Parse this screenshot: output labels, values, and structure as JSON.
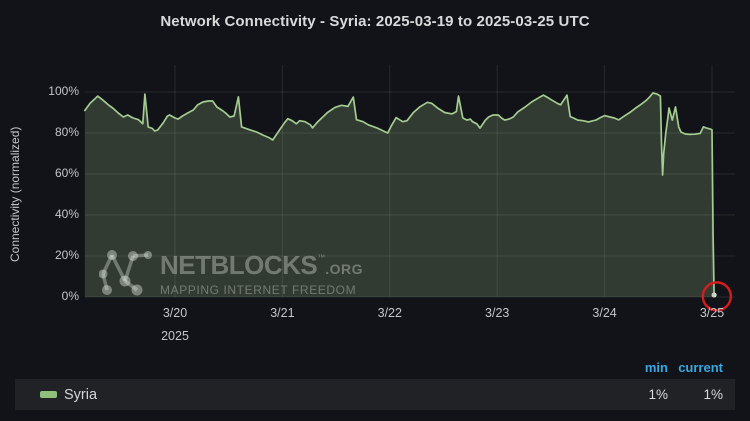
{
  "title": "Network Connectivity - Syria: 2025-03-19 to 2025-03-25 UTC",
  "colors": {
    "background": "#121318",
    "title_text": "#d8d9da",
    "tick_text": "#c2c5c9",
    "grid": "rgba(255,255,255,0.09)",
    "line": "#a4cb90",
    "fill": "rgba(163,203,144,0.22)",
    "legend_header": "#38a7e0",
    "legend_row_bg": "#212226",
    "annotation_red": "#d41d1d",
    "endpoint_dot": "#ccd4c9",
    "watermark": "rgba(234,242,233,0.34)"
  },
  "chart_data": {
    "type": "line",
    "title": "Network Connectivity - Syria: 2025-03-19 to 2025-03-25 UTC",
    "xlabel": "",
    "ylabel": "Connectivity (normalized)",
    "ylim": [
      0,
      100
    ],
    "x_unit": "days since 2025-03-19 00:00 UTC",
    "xlim": [
      0.16,
      6.21
    ],
    "grid": true,
    "legend_position": "bottom",
    "y_axis": {
      "label": "Connectivity (normalized)",
      "ticks": [
        {
          "v": 100,
          "label": "100%"
        },
        {
          "v": 80,
          "label": "80%"
        },
        {
          "v": 60,
          "label": "60%"
        },
        {
          "v": 40,
          "label": "40%"
        },
        {
          "v": 20,
          "label": "20%"
        },
        {
          "v": 0,
          "label": "0%"
        }
      ]
    },
    "x_axis": {
      "ticks": [
        {
          "t": 1,
          "label": "3/20"
        },
        {
          "t": 2,
          "label": "3/21"
        },
        {
          "t": 3,
          "label": "3/22"
        },
        {
          "t": 4,
          "label": "3/23"
        },
        {
          "t": 5,
          "label": "3/24"
        },
        {
          "t": 6,
          "label": "3/25"
        }
      ],
      "year_label": "2025",
      "year_under_t": 1
    },
    "series": [
      {
        "name": "Syria",
        "color": "#a4cb90",
        "points": [
          [
            0.16,
            91
          ],
          [
            0.21,
            94.6
          ],
          [
            0.26,
            97
          ],
          [
            0.28,
            98
          ],
          [
            0.33,
            96
          ],
          [
            0.38,
            93.7
          ],
          [
            0.42,
            92.2
          ],
          [
            0.47,
            89.8
          ],
          [
            0.52,
            87.8
          ],
          [
            0.56,
            88.8
          ],
          [
            0.61,
            87.3
          ],
          [
            0.66,
            86.5
          ],
          [
            0.7,
            84.5
          ],
          [
            0.72,
            99
          ],
          [
            0.75,
            83
          ],
          [
            0.79,
            82.2
          ],
          [
            0.81,
            81
          ],
          [
            0.84,
            81.5
          ],
          [
            0.89,
            85
          ],
          [
            0.93,
            88.3
          ],
          [
            0.95,
            88.8
          ],
          [
            1.0,
            87.3
          ],
          [
            1.03,
            86.8
          ],
          [
            1.07,
            88.3
          ],
          [
            1.12,
            89.8
          ],
          [
            1.17,
            91.2
          ],
          [
            1.21,
            93.7
          ],
          [
            1.26,
            95.1
          ],
          [
            1.31,
            95.6
          ],
          [
            1.35,
            95.6
          ],
          [
            1.39,
            92.7
          ],
          [
            1.44,
            91
          ],
          [
            1.47,
            89.8
          ],
          [
            1.51,
            87.8
          ],
          [
            1.55,
            88.3
          ],
          [
            1.59,
            97.6
          ],
          [
            1.62,
            83
          ],
          [
            1.65,
            82.4
          ],
          [
            1.7,
            81.5
          ],
          [
            1.76,
            80.5
          ],
          [
            1.82,
            79
          ],
          [
            1.88,
            77.6
          ],
          [
            1.91,
            76.6
          ],
          [
            1.98,
            82
          ],
          [
            2.02,
            85
          ],
          [
            2.05,
            87
          ],
          [
            2.09,
            86
          ],
          [
            2.13,
            84.5
          ],
          [
            2.16,
            86
          ],
          [
            2.21,
            85.5
          ],
          [
            2.26,
            84
          ],
          [
            2.28,
            82.5
          ],
          [
            2.33,
            85.5
          ],
          [
            2.38,
            88
          ],
          [
            2.42,
            90
          ],
          [
            2.49,
            92.5
          ],
          [
            2.55,
            93.5
          ],
          [
            2.61,
            93
          ],
          [
            2.66,
            97.5
          ],
          [
            2.69,
            86.5
          ],
          [
            2.75,
            85.5
          ],
          [
            2.8,
            84
          ],
          [
            2.88,
            82.5
          ],
          [
            2.94,
            81
          ],
          [
            2.98,
            80
          ],
          [
            3.02,
            84
          ],
          [
            3.06,
            87.5
          ],
          [
            3.09,
            86.5
          ],
          [
            3.12,
            85.5
          ],
          [
            3.16,
            86
          ],
          [
            3.22,
            90
          ],
          [
            3.28,
            92.8
          ],
          [
            3.35,
            95
          ],
          [
            3.39,
            94.5
          ],
          [
            3.45,
            92
          ],
          [
            3.51,
            90
          ],
          [
            3.58,
            89.3
          ],
          [
            3.62,
            90.5
          ],
          [
            3.64,
            98
          ],
          [
            3.68,
            87.3
          ],
          [
            3.72,
            86.3
          ],
          [
            3.75,
            86.8
          ],
          [
            3.77,
            85.5
          ],
          [
            3.81,
            84.5
          ],
          [
            3.84,
            82.4
          ],
          [
            3.89,
            86.3
          ],
          [
            3.92,
            87.8
          ],
          [
            3.96,
            88.8
          ],
          [
            4.01,
            88.8
          ],
          [
            4.04,
            87.3
          ],
          [
            4.07,
            86.3
          ],
          [
            4.11,
            86.8
          ],
          [
            4.15,
            87.8
          ],
          [
            4.19,
            90.2
          ],
          [
            4.26,
            92.7
          ],
          [
            4.32,
            95.1
          ],
          [
            4.38,
            97
          ],
          [
            4.43,
            98.5
          ],
          [
            4.46,
            97.6
          ],
          [
            4.51,
            96
          ],
          [
            4.56,
            94.5
          ],
          [
            4.59,
            93.7
          ],
          [
            4.65,
            98.5
          ],
          [
            4.68,
            88
          ],
          [
            4.71,
            87.3
          ],
          [
            4.75,
            86.3
          ],
          [
            4.8,
            86
          ],
          [
            4.85,
            85.4
          ],
          [
            4.88,
            85.8
          ],
          [
            4.92,
            86.3
          ],
          [
            4.96,
            87.5
          ],
          [
            5.0,
            88.5
          ],
          [
            5.05,
            87.8
          ],
          [
            5.09,
            87.3
          ],
          [
            5.13,
            86.4
          ],
          [
            5.19,
            88.5
          ],
          [
            5.24,
            90.2
          ],
          [
            5.29,
            92.2
          ],
          [
            5.34,
            94
          ],
          [
            5.39,
            96
          ],
          [
            5.42,
            97.6
          ],
          [
            5.45,
            99.5
          ],
          [
            5.49,
            99
          ],
          [
            5.52,
            98
          ],
          [
            5.53,
            75
          ],
          [
            5.54,
            59.5
          ],
          [
            5.55,
            70
          ],
          [
            5.57,
            80
          ],
          [
            5.59,
            88
          ],
          [
            5.6,
            92.2
          ],
          [
            5.63,
            86.3
          ],
          [
            5.66,
            92.7
          ],
          [
            5.69,
            83
          ],
          [
            5.71,
            80.5
          ],
          [
            5.75,
            79.5
          ],
          [
            5.79,
            79.3
          ],
          [
            5.84,
            79.4
          ],
          [
            5.89,
            79.8
          ],
          [
            5.92,
            83
          ],
          [
            5.95,
            82.4
          ],
          [
            5.98,
            82
          ],
          [
            6.0,
            81.5
          ],
          [
            6.01,
            30
          ],
          [
            6.02,
            1
          ]
        ]
      }
    ],
    "annotation": {
      "type": "circle",
      "t": 6.045,
      "v": 0.3,
      "radius_px": 14,
      "color": "#d41d1d",
      "meaning": "highlights final drop to 1%"
    }
  },
  "watermark": {
    "brand": "NETBLOCKS",
    "tm": "™",
    "org": ".ORG",
    "tagline": "MAPPING INTERNET FREEDOM"
  },
  "legend": {
    "columns": [
      "min",
      "current"
    ],
    "rows": [
      {
        "label": "Syria",
        "color": "#8fbf7d",
        "min": "1%",
        "current": "1%"
      }
    ]
  }
}
